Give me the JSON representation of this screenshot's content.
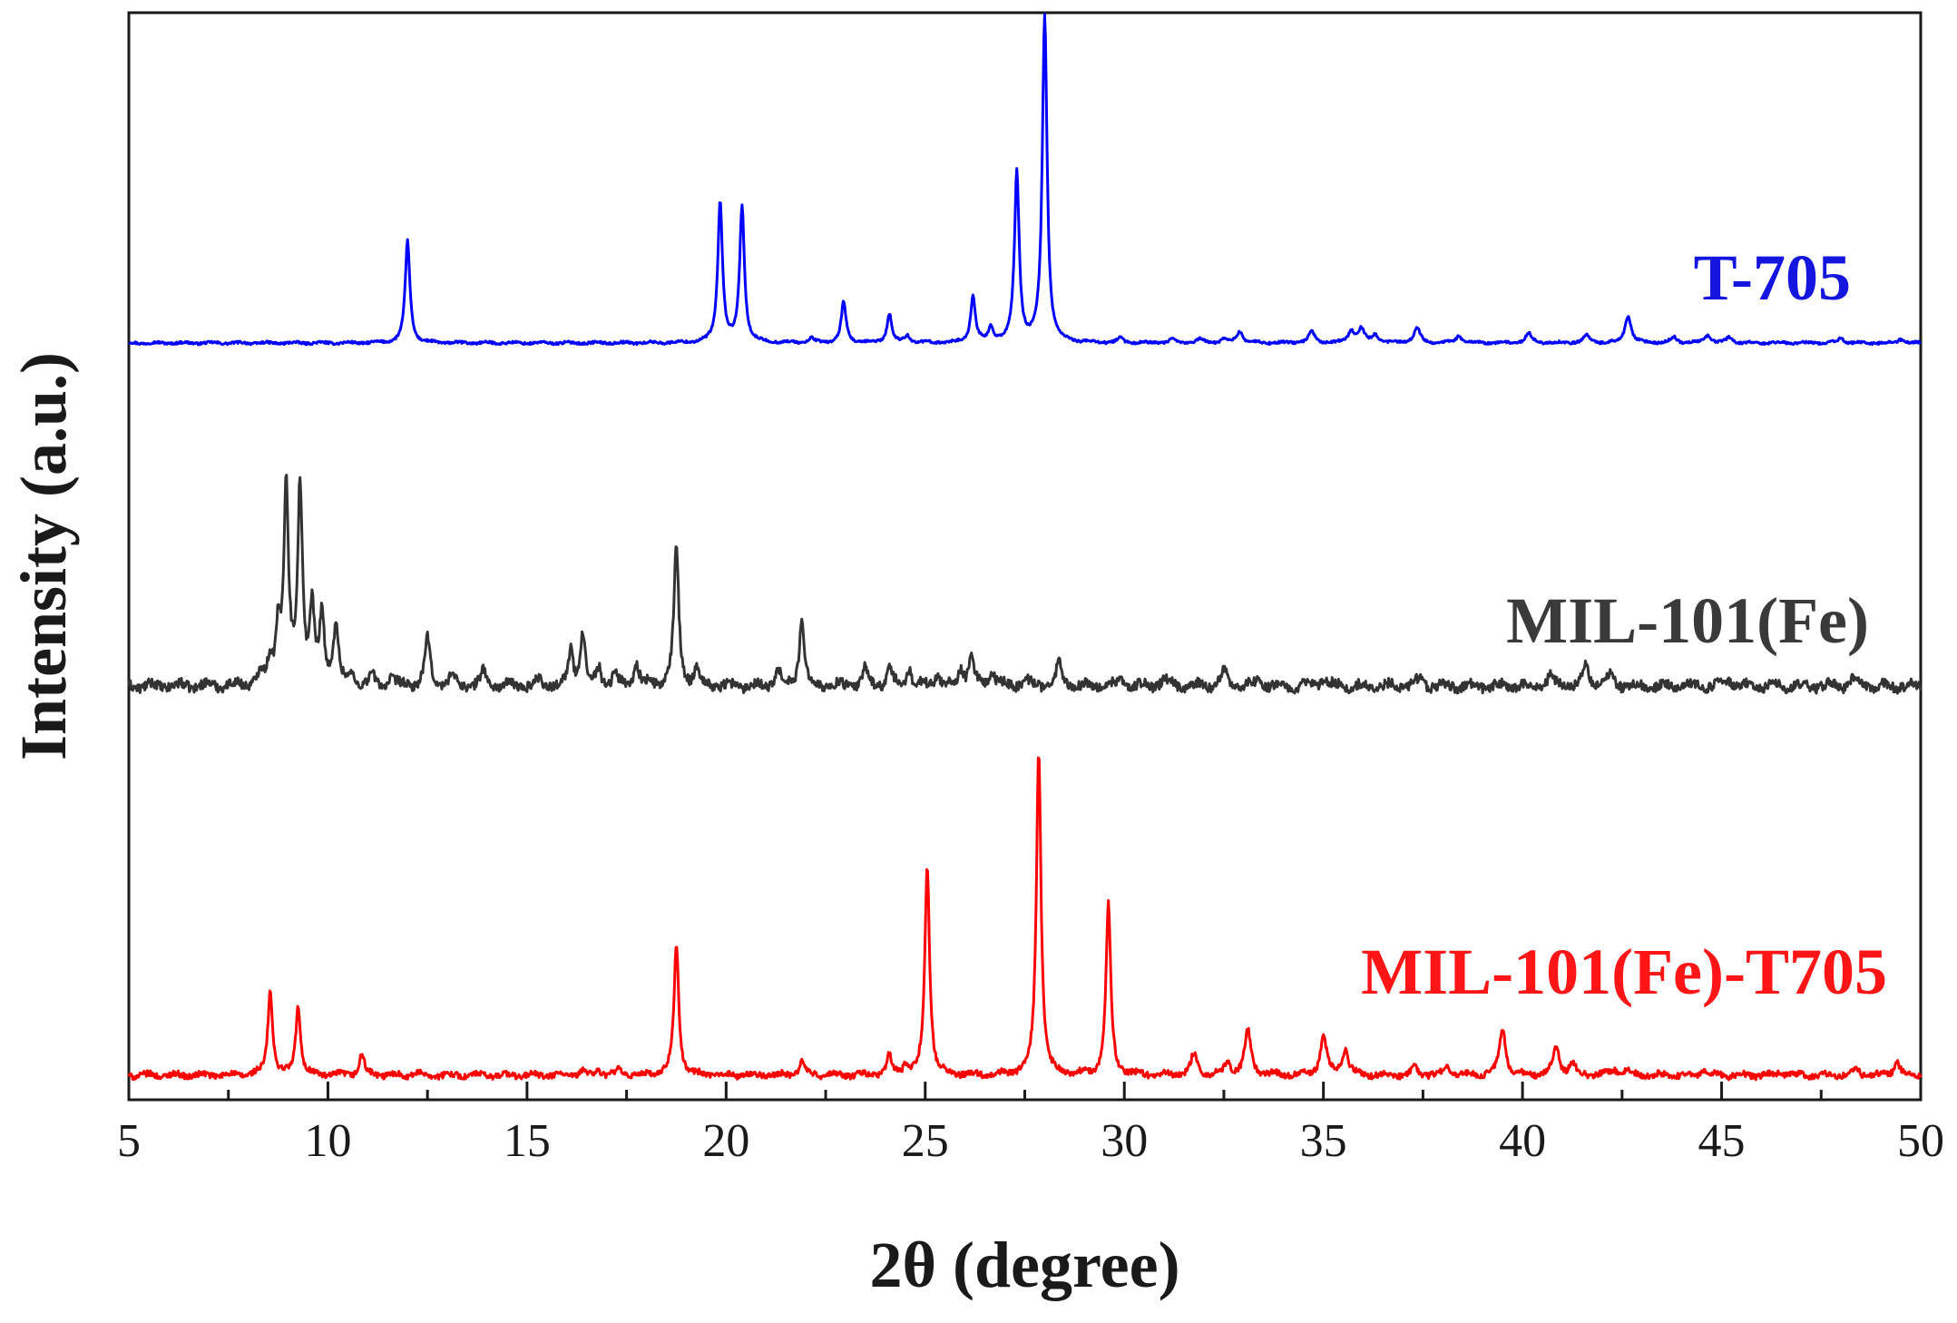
{
  "chart_data": {
    "type": "line",
    "xlabel": "2θ (degree)",
    "ylabel": "Intensity (a.u.)",
    "xlim": [
      5,
      50
    ],
    "xticks": [
      5,
      10,
      15,
      20,
      25,
      30,
      35,
      40,
      45,
      50
    ],
    "ylim": [
      0,
      10.6
    ],
    "grid": false,
    "legend": "inline labels to the right of each curve",
    "series": [
      {
        "name": "T-705",
        "color": "#0000ff",
        "label_color": "#1515e0",
        "offset": 7.2,
        "peaks": [
          [
            12.0,
            1.05
          ],
          [
            19.85,
            1.45
          ],
          [
            20.4,
            1.4
          ],
          [
            22.15,
            0.05
          ],
          [
            22.95,
            0.42
          ],
          [
            24.1,
            0.3
          ],
          [
            24.55,
            0.08
          ],
          [
            26.2,
            0.48
          ],
          [
            26.65,
            0.15
          ],
          [
            27.3,
            1.75
          ],
          [
            28.0,
            3.4
          ],
          [
            29.9,
            0.05
          ],
          [
            31.2,
            0.03
          ],
          [
            31.9,
            0.04
          ],
          [
            32.5,
            0.04
          ],
          [
            32.9,
            0.12
          ],
          [
            34.7,
            0.12
          ],
          [
            35.7,
            0.12
          ],
          [
            35.95,
            0.14
          ],
          [
            36.3,
            0.08
          ],
          [
            37.35,
            0.16
          ],
          [
            38.4,
            0.07
          ],
          [
            40.15,
            0.1
          ],
          [
            41.6,
            0.08
          ],
          [
            42.65,
            0.28
          ],
          [
            43.8,
            0.06
          ],
          [
            44.65,
            0.08
          ],
          [
            45.2,
            0.06
          ],
          [
            48.0,
            0.05
          ],
          [
            49.5,
            0.04
          ]
        ]
      },
      {
        "name": "MIL-101(Fe)",
        "color": "#333333",
        "label_color": "#3a3a3a",
        "offset": 3.8,
        "peaks": [
          [
            8.3,
            0.12
          ],
          [
            8.55,
            0.25
          ],
          [
            8.75,
            0.55
          ],
          [
            8.95,
            2.0
          ],
          [
            9.3,
            2.05
          ],
          [
            9.6,
            0.75
          ],
          [
            9.85,
            0.7
          ],
          [
            10.2,
            0.65
          ],
          [
            10.6,
            0.1
          ],
          [
            11.1,
            0.1
          ],
          [
            11.6,
            0.08
          ],
          [
            12.5,
            0.5
          ],
          [
            13.1,
            0.12
          ],
          [
            13.9,
            0.16
          ],
          [
            15.3,
            0.06
          ],
          [
            16.1,
            0.35
          ],
          [
            16.4,
            0.55
          ],
          [
            16.8,
            0.18
          ],
          [
            17.2,
            0.12
          ],
          [
            17.75,
            0.25
          ],
          [
            18.75,
            1.45
          ],
          [
            19.25,
            0.18
          ],
          [
            21.3,
            0.18
          ],
          [
            21.9,
            0.7
          ],
          [
            23.5,
            0.18
          ],
          [
            24.1,
            0.18
          ],
          [
            24.6,
            0.18
          ],
          [
            25.3,
            0.14
          ],
          [
            25.9,
            0.18
          ],
          [
            26.15,
            0.32
          ],
          [
            26.7,
            0.15
          ],
          [
            27.5,
            0.1
          ],
          [
            28.35,
            0.25
          ],
          [
            29.9,
            0.08
          ],
          [
            31.0,
            0.08
          ],
          [
            32.5,
            0.16
          ],
          [
            33.4,
            0.07
          ],
          [
            35.0,
            0.08
          ],
          [
            37.4,
            0.06
          ],
          [
            40.7,
            0.1
          ],
          [
            41.6,
            0.2
          ],
          [
            42.2,
            0.1
          ],
          [
            45.2,
            0.06
          ],
          [
            48.3,
            0.06
          ]
        ]
      },
      {
        "name": "MIL-101(Fe)-T705",
        "color": "#ff0000",
        "label_color": "#ff1515",
        "offset": 0.0,
        "peaks": [
          [
            8.55,
            0.88
          ],
          [
            9.25,
            0.72
          ],
          [
            10.85,
            0.22
          ],
          [
            12.2,
            0.03
          ],
          [
            16.4,
            0.05
          ],
          [
            16.8,
            0.06
          ],
          [
            17.3,
            0.05
          ],
          [
            18.75,
            1.36
          ],
          [
            21.9,
            0.16
          ],
          [
            24.1,
            0.19
          ],
          [
            24.5,
            0.1
          ],
          [
            25.05,
            2.18
          ],
          [
            27.85,
            3.32
          ],
          [
            29.6,
            1.78
          ],
          [
            31.75,
            0.22
          ],
          [
            32.6,
            0.13
          ],
          [
            33.1,
            0.47
          ],
          [
            35.0,
            0.42
          ],
          [
            35.55,
            0.27
          ],
          [
            37.3,
            0.08
          ],
          [
            38.1,
            0.08
          ],
          [
            39.5,
            0.48
          ],
          [
            40.85,
            0.28
          ],
          [
            41.25,
            0.12
          ],
          [
            42.3,
            0.06
          ],
          [
            42.6,
            0.05
          ],
          [
            44.55,
            0.05
          ],
          [
            46.5,
            0.04
          ],
          [
            48.4,
            0.05
          ],
          [
            49.4,
            0.14
          ]
        ]
      }
    ]
  }
}
